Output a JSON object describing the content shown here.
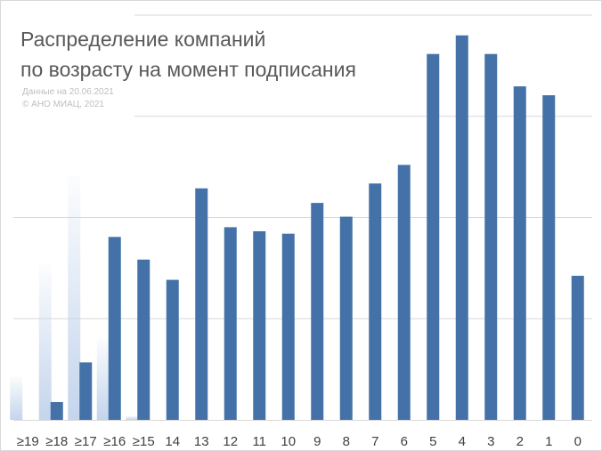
{
  "title_lines": [
    "Распределение компаний",
    "по возрасту на момент подписания"
  ],
  "source_lines": [
    "Данные на 20.06.2021",
    "© АНО МИАЦ, 2021"
  ],
  "colors": {
    "bar": "#4472a8",
    "ghost": "#bdd0ea",
    "grid": "#d9d9d9",
    "text": "#595959"
  },
  "chart_data": {
    "type": "bar",
    "title": "Распределение компаний по возрасту на момент подписания",
    "categories": [
      "≥19",
      "≥18",
      "≥17",
      "≥16",
      "≥15",
      "14",
      "13",
      "12",
      "11",
      "10",
      "9",
      "8",
      "7",
      "6",
      "5",
      "4",
      "3",
      "2",
      "1",
      "0"
    ],
    "values": [
      0,
      2.2,
      7.1,
      22.6,
      19.8,
      17.3,
      28.6,
      23.8,
      23.3,
      23.0,
      26.8,
      25.1,
      29.2,
      31.5,
      45.2,
      47.5,
      45.2,
      41.2,
      40.1,
      17.8
    ],
    "ghost_values": [
      5.4,
      19.2,
      30.1,
      10.1,
      0.5
    ],
    "ylim": [
      0,
      50
    ],
    "grid": true,
    "gridlines": [
      0,
      12.5,
      25,
      37.5,
      50
    ],
    "xlabel": "",
    "ylabel": ""
  }
}
